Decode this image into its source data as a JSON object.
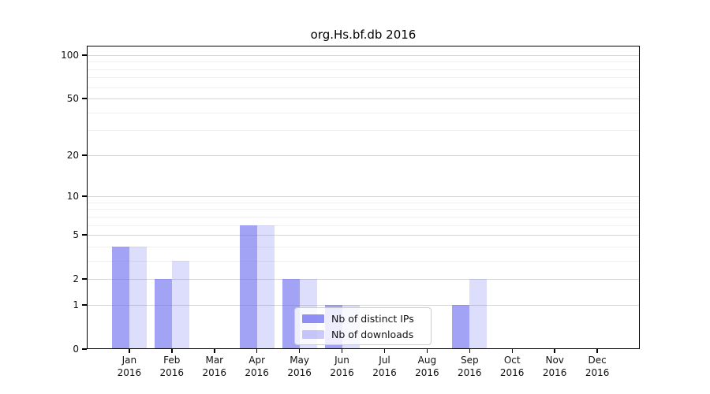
{
  "title": "org.Hs.bf.db 2016",
  "chart_data": {
    "type": "bar",
    "title": "org.Hs.bf.db 2016",
    "categories": [
      "Jan",
      "Feb",
      "Mar",
      "Apr",
      "May",
      "Jun",
      "Jul",
      "Aug",
      "Sep",
      "Oct",
      "Nov",
      "Dec"
    ],
    "year_label": "2016",
    "series": [
      {
        "key": "distinct-ips",
        "name": "Nb of distinct IPs",
        "color": "#6565f0",
        "opacity": 0.6,
        "values": [
          4,
          2,
          0,
          6,
          2,
          1,
          0,
          0,
          1,
          0,
          0,
          0
        ]
      },
      {
        "key": "downloads",
        "name": "Nb of downloads",
        "color": "#6565f0",
        "opacity": 0.22,
        "values": [
          4,
          3,
          0,
          6,
          2,
          1,
          0,
          0,
          2,
          0,
          0,
          0
        ]
      }
    ],
    "yscale": "log1p",
    "yticks": [
      0,
      1,
      2,
      5,
      10,
      20,
      50,
      100
    ],
    "minor_yticks": [
      3,
      4,
      6,
      7,
      8,
      9,
      30,
      40,
      60,
      70,
      80,
      90
    ],
    "ylim": [
      0,
      116
    ],
    "xlabel": "",
    "ylabel": "",
    "grid": "on",
    "legend_position": "lower-center",
    "colors": {
      "major_gridline": "#d8d8d8",
      "minor_gridline": "#efefef",
      "axis": "#000000",
      "background": "#ffffff",
      "legend_border": "#cccccc"
    }
  }
}
